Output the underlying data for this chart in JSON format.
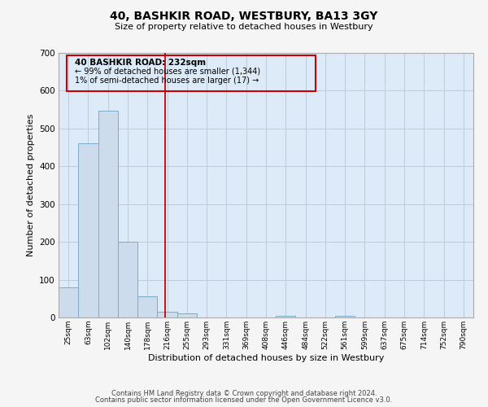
{
  "title": "40, BASHKIR ROAD, WESTBURY, BA13 3GY",
  "subtitle": "Size of property relative to detached houses in Westbury",
  "xlabel": "Distribution of detached houses by size in Westbury",
  "ylabel": "Number of detached properties",
  "bar_labels": [
    "25sqm",
    "63sqm",
    "102sqm",
    "140sqm",
    "178sqm",
    "216sqm",
    "255sqm",
    "293sqm",
    "331sqm",
    "369sqm",
    "408sqm",
    "446sqm",
    "484sqm",
    "522sqm",
    "561sqm",
    "599sqm",
    "637sqm",
    "675sqm",
    "714sqm",
    "752sqm",
    "790sqm"
  ],
  "bar_heights": [
    80,
    460,
    548,
    200,
    57,
    15,
    10,
    0,
    0,
    0,
    0,
    5,
    0,
    0,
    5,
    0,
    0,
    0,
    0,
    0,
    0
  ],
  "bar_color": "#ccdcec",
  "bar_edge_color": "#7aaccc",
  "ylim": [
    0,
    700
  ],
  "yticks": [
    0,
    100,
    200,
    300,
    400,
    500,
    600,
    700
  ],
  "property_line_label": "40 BASHKIR ROAD: 232sqm",
  "annotation_line1": "← 99% of detached houses are smaller (1,344)",
  "annotation_line2": "1% of semi-detached houses are larger (17) →",
  "annotation_box_edge_color": "#cc0000",
  "property_line_color": "#cc0000",
  "grid_color": "#bbccdd",
  "bg_color": "#ddeaf7",
  "fig_bg_color": "#f5f5f5",
  "footer1": "Contains HM Land Registry data © Crown copyright and database right 2024.",
  "footer2": "Contains public sector information licensed under the Open Government Licence v3.0."
}
